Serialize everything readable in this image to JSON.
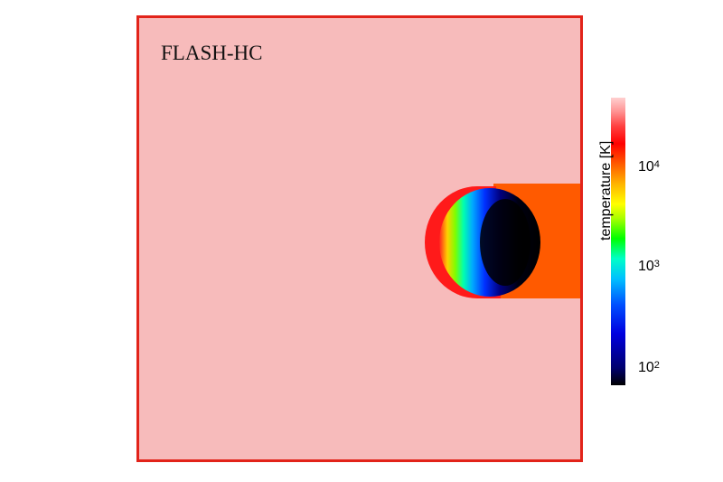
{
  "chart_data": {
    "type": "heatmap",
    "title": "",
    "panel_label": "FLASH-HC",
    "colorbar": {
      "label": "temperature [K]",
      "scale": "log",
      "range": [
        70,
        50000
      ],
      "ticks": [
        {
          "base": "10",
          "exp": "4",
          "value": 10000
        },
        {
          "base": "10",
          "exp": "3",
          "value": 1000
        },
        {
          "base": "10",
          "exp": "2",
          "value": 100
        }
      ],
      "colormap": "rainbow (black-blue-cyan-green-yellow-red-pink)"
    },
    "regions": [
      {
        "name": "ambient medium",
        "temperature_K": 20000
      },
      {
        "name": "shadow behind clump",
        "temperature_K": 9000
      },
      {
        "name": "clump interior",
        "temperature_K": 90
      },
      {
        "name": "clump ionized rim",
        "temperature_K": 15000
      }
    ],
    "colors": {
      "frame": "#e2231a",
      "ambient": "#f7bbbb",
      "shadow": "#ff5a00"
    }
  }
}
